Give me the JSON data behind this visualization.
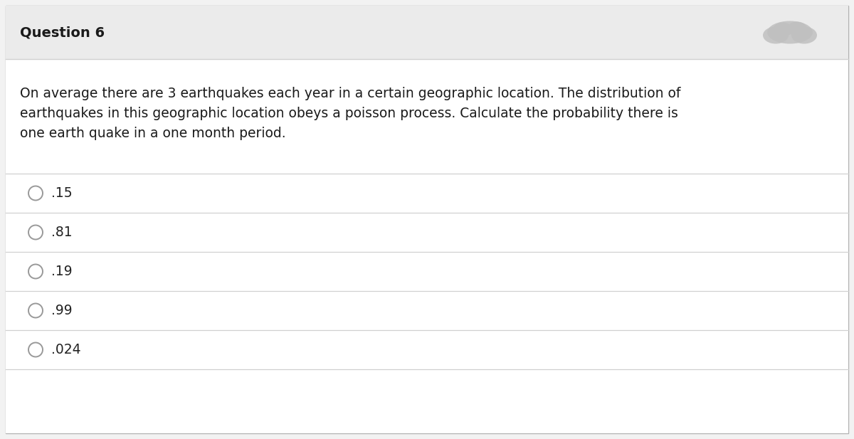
{
  "title": "Question 6",
  "question_text_lines": [
    "On average there are 3 earthquakes each year in a certain geographic location. The distribution of",
    "earthquakes in this geographic location obeys a poisson process. Calculate the probability there is",
    "one earth quake in a one month period."
  ],
  "options": [
    ".15",
    ".81",
    ".19",
    ".99",
    ".024"
  ],
  "background_color": "#f2f2f2",
  "body_background": "#ffffff",
  "header_bg": "#ebebeb",
  "text_color": "#1a1a1a",
  "option_color": "#222222",
  "line_color": "#d0d0d0",
  "title_fontsize": 14,
  "question_fontsize": 13.5,
  "option_fontsize": 13.5,
  "fig_width": 12.0,
  "fig_height": 6.17
}
